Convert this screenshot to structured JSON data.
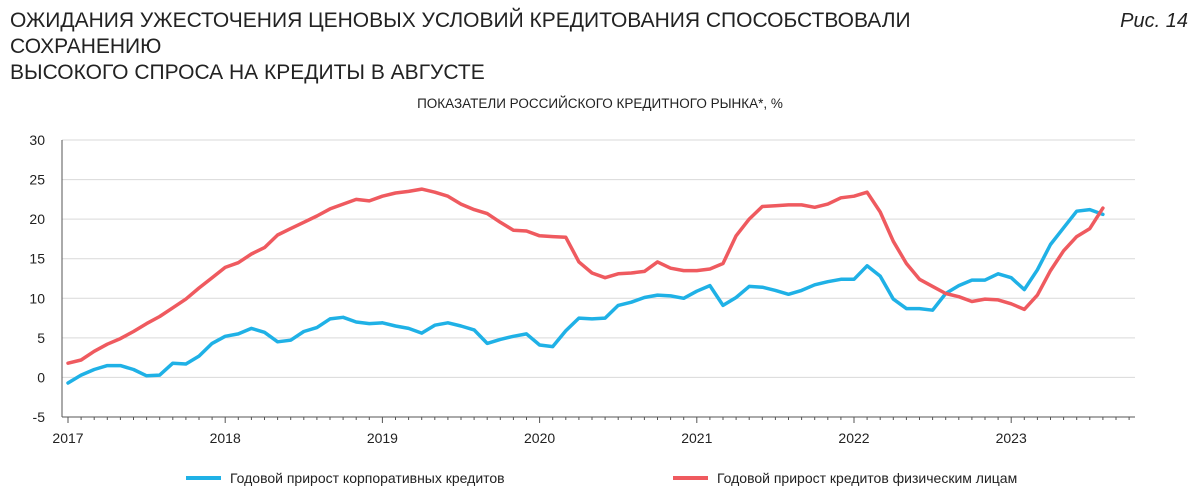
{
  "header": {
    "title_line1": "ОЖИДАНИЯ УЖЕСТОЧЕНИЯ ЦЕНОВЫХ УСЛОВИЙ КРЕДИТОВАНИЯ СПОСОБСТВОВАЛИ СОХРАНЕНИЮ",
    "title_line2": "ВЫСОКОГО СПРОСА НА КРЕДИТЫ В АВГУСТЕ",
    "figure_label": "Рис. 14"
  },
  "colors": {
    "corporate": "#1fb1e6",
    "retail": "#ef5a5f",
    "grid": "#d9d9d9",
    "axis": "#555555"
  },
  "chart_data": {
    "type": "line",
    "title": "ПОКАЗАТЕЛИ РОССИЙСКОГО КРЕДИТНОГО РЫНКА*, %",
    "xlabel": "",
    "ylabel": "",
    "ylim": [
      -5,
      30
    ],
    "yticks": [
      -5,
      0,
      5,
      10,
      15,
      20,
      25,
      30
    ],
    "year_ticks": [
      "2017",
      "2018",
      "2019",
      "2020",
      "2021",
      "2022",
      "2023"
    ],
    "x_start": "2017-01",
    "x_step": "month",
    "grid": true,
    "legend_position": "bottom",
    "series": [
      {
        "name": "Годовой прирост корпоративных кредитов",
        "color_key": "corporate",
        "values": [
          -0.7,
          0.3,
          1.0,
          1.5,
          1.5,
          1.0,
          0.2,
          0.3,
          1.8,
          1.7,
          2.7,
          4.3,
          5.2,
          5.5,
          6.2,
          5.7,
          4.5,
          4.7,
          5.8,
          6.3,
          7.4,
          7.6,
          7.0,
          6.8,
          6.9,
          6.5,
          6.2,
          5.6,
          6.6,
          6.9,
          6.5,
          6.0,
          4.3,
          4.8,
          5.2,
          5.5,
          4.1,
          3.9,
          5.9,
          7.5,
          7.4,
          7.5,
          9.1,
          9.5,
          10.1,
          10.4,
          10.3,
          10.0,
          10.9,
          11.6,
          9.1,
          10.1,
          11.5,
          11.4,
          11.0,
          10.5,
          11.0,
          11.7,
          12.1,
          12.4,
          12.4,
          14.1,
          12.8,
          9.9,
          8.7,
          8.7,
          8.5,
          10.6,
          11.6,
          12.3,
          12.3,
          13.1,
          12.6,
          11.1,
          13.6,
          16.8,
          18.9,
          21.0,
          21.2,
          20.6
        ]
      },
      {
        "name": "Годовой прирост кредитов физическим лицам",
        "color_key": "retail",
        "values": [
          1.8,
          2.2,
          3.3,
          4.2,
          4.9,
          5.8,
          6.8,
          7.7,
          8.8,
          9.9,
          11.3,
          12.6,
          13.9,
          14.5,
          15.6,
          16.4,
          18.0,
          18.8,
          19.6,
          20.4,
          21.3,
          21.9,
          22.5,
          22.3,
          22.9,
          23.3,
          23.5,
          23.8,
          23.4,
          22.9,
          21.9,
          21.2,
          20.7,
          19.6,
          18.6,
          18.5,
          17.9,
          17.8,
          17.7,
          14.6,
          13.2,
          12.6,
          13.1,
          13.2,
          13.4,
          14.6,
          13.8,
          13.5,
          13.5,
          13.7,
          14.4,
          17.9,
          20.0,
          21.6,
          21.7,
          21.8,
          21.8,
          21.5,
          21.9,
          22.7,
          22.9,
          23.4,
          20.9,
          17.2,
          14.4,
          12.4,
          11.5,
          10.6,
          10.2,
          9.6,
          9.9,
          9.8,
          9.3,
          8.6,
          10.4,
          13.5,
          16.0,
          17.8,
          18.8,
          21.4
        ]
      }
    ]
  }
}
